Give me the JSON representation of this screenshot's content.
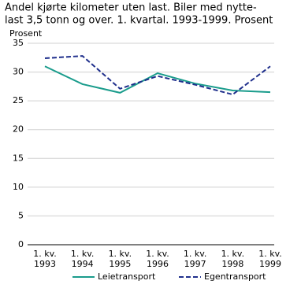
{
  "chart_data": {
    "type": "line",
    "title": [
      "Andel kjørte kilometer uten last. Biler med nytte-",
      "last 3,5 tonn og over. 1. kvartal. 1993-1999. Prosent"
    ],
    "y_label": "Prosent",
    "categories": [
      [
        "1. kv.",
        "1993"
      ],
      [
        "1. kv.",
        "1994"
      ],
      [
        "1. kv.",
        "1995"
      ],
      [
        "1. kv.",
        "1996"
      ],
      [
        "1. kv.",
        "1997"
      ],
      [
        "1. kv.",
        "1998"
      ],
      [
        "1. kv.",
        "1999"
      ]
    ],
    "series": [
      {
        "name": "Leietransport",
        "color": "#1a9c8c",
        "style": "solid",
        "values": [
          31.0,
          27.9,
          26.4,
          29.8,
          28.0,
          26.8,
          26.5
        ]
      },
      {
        "name": "Egentransport",
        "color": "#1f2f8c",
        "style": "dashed",
        "values": [
          32.4,
          32.8,
          27.1,
          29.3,
          27.8,
          26.1,
          31.0
        ]
      }
    ],
    "ylim": [
      0,
      35
    ],
    "yticks": [
      0,
      5,
      10,
      15,
      20,
      25,
      30,
      35
    ],
    "grid": true,
    "legend": "bottom"
  }
}
